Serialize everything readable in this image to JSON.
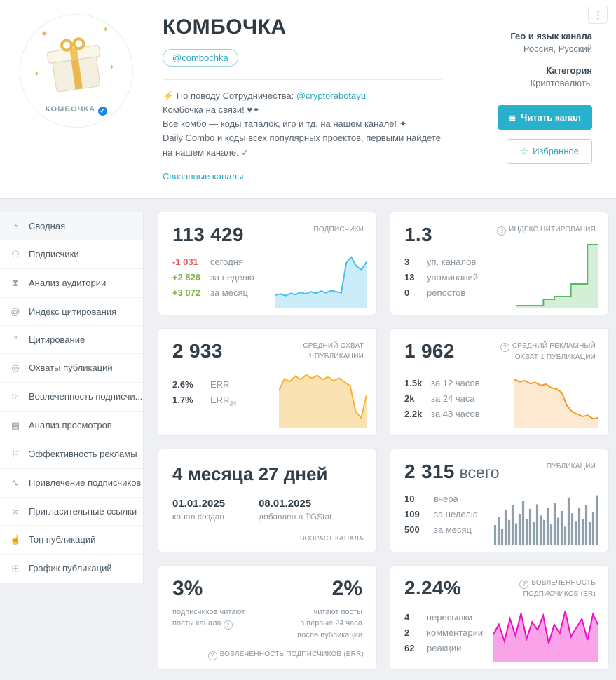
{
  "icons": {
    "dots": "⋮",
    "star": "☆",
    "read": "≣",
    "check": "✓"
  },
  "header": {
    "title": "КОМБОЧКА",
    "username": "@combochka",
    "avatar_caption": "КОМБОЧКА",
    "description": {
      "line1_prefix": "⚡ По поводу Сотрудничества: ",
      "line1_link": "@cryptorabotayu",
      "line2": "Комбочка на связи! ♥✦",
      "line3": "Все комбо — коды тапалок, игр и тд. на нашем канале! ✦",
      "line4": "Daily Combo и коды всех популярных проектов, первыми найдете",
      "line5": "на нашем канале. ✓",
      "related_link": "Связанные каналы"
    },
    "meta": {
      "geo_label": "Гео и язык канала",
      "geo_value": "Россия, Русский",
      "category_label": "Категория",
      "category_value": "Криптовалюты"
    },
    "buttons": {
      "read": "Читать канал",
      "favorite": "Избранное"
    }
  },
  "sidebar": {
    "items": [
      {
        "label": "Сводная",
        "icon": "◔"
      },
      {
        "label": "Подписчики",
        "icon": "⚇"
      },
      {
        "label": "Анализ аудитории",
        "icon": "⧗"
      },
      {
        "label": "Индекс цитирования",
        "icon": "@"
      },
      {
        "label": "Цитирование",
        "icon": "”"
      },
      {
        "label": "Охваты публикаций",
        "icon": "◎"
      },
      {
        "label": "Вовлеченность подписчи...",
        "icon": "☞"
      },
      {
        "label": "Анализ просмотров",
        "icon": "▦"
      },
      {
        "label": "Эффективность рекламы",
        "icon": "⚐"
      },
      {
        "label": "Привлечение подписчиков",
        "icon": "∿"
      },
      {
        "label": "Пригласительные ссылки",
        "icon": "∞"
      },
      {
        "label": "Топ публикаций",
        "icon": "☝"
      },
      {
        "label": "График публикаций",
        "icon": "⊞"
      }
    ]
  },
  "cards": {
    "subscribers": {
      "value": "113 429",
      "label": "ПОДПИСЧИКИ",
      "stats": [
        {
          "value": "-1 031",
          "label": "сегодня"
        },
        {
          "value": "+2 826",
          "label": "за неделю"
        },
        {
          "value": "+3 072",
          "label": "за месяц"
        }
      ],
      "chart": {
        "type": "area",
        "points": [
          22,
          24,
          21,
          25,
          23,
          27,
          24,
          28,
          25,
          29,
          26,
          30,
          28,
          26,
          78,
          88,
          72,
          66,
          80
        ],
        "color": "#45c0e8",
        "fill": "rgba(69,192,232,0.28)"
      }
    },
    "citation": {
      "value": "1.3",
      "label": "ИНДЕКС ЦИТИРОВАНИЯ",
      "stats": [
        {
          "value": "3",
          "label": "уп. каналов"
        },
        {
          "value": "13",
          "label": "упоминаний"
        },
        {
          "value": "0",
          "label": "репостов"
        }
      ],
      "chart": {
        "type": "step",
        "points": [
          3,
          3,
          3,
          3,
          3,
          12,
          12,
          16,
          16,
          16,
          34,
          34,
          34,
          90,
          90,
          97
        ],
        "color": "#57bb63",
        "fill": "rgba(87,187,99,0.25)"
      }
    },
    "avg_reach": {
      "value": "2 933",
      "label_line1": "СРЕДНИЙ ОХВАТ",
      "label_line2": "1 ПУБЛИКАЦИИ",
      "stats": [
        {
          "value": "2.6%",
          "label": "ERR",
          "sub": ""
        },
        {
          "value": "1.7%",
          "label": "ERR",
          "sub": "24"
        }
      ],
      "chart": {
        "type": "area",
        "points": [
          55,
          72,
          68,
          76,
          71,
          78,
          73,
          77,
          71,
          75,
          69,
          73,
          67,
          62,
          25,
          15,
          48
        ],
        "color": "#f5b335",
        "fill": "rgba(245,179,53,0.38)"
      }
    },
    "ad_reach": {
      "value": "1 962",
      "label_line1": "СРЕДНИЙ РЕКЛАМНЫЙ",
      "label_line2": "ОХВАТ 1 ПУБЛИКАЦИИ",
      "stats": [
        {
          "value": "1.5k",
          "label": "за 12 часов"
        },
        {
          "value": "2k",
          "label": "за 24 часа"
        },
        {
          "value": "2.2k",
          "label": "за 48 часов"
        }
      ],
      "chart": {
        "type": "area",
        "points": [
          82,
          78,
          80,
          75,
          77,
          72,
          74,
          68,
          66,
          60,
          38,
          28,
          24,
          20,
          22,
          16,
          18
        ],
        "color": "#f59a23",
        "fill": "rgba(245,154,35,0.22)"
      }
    },
    "age": {
      "value": "4 месяца 27 дней",
      "created_date": "01.01.2025",
      "created_label": "канал создан",
      "added_date": "08.01.2025",
      "added_label": "добавлен в TGStat",
      "label": "ВОЗРАСТ КАНАЛА"
    },
    "posts": {
      "value": "2 315",
      "value_suffix": "всего",
      "label": "ПУБЛИКАЦИИ",
      "stats": [
        {
          "value": "10",
          "label": "вчера"
        },
        {
          "value": "109",
          "label": "за неделю"
        },
        {
          "value": "500",
          "label": "за месяц"
        }
      ],
      "chart": {
        "type": "bars",
        "points": [
          35,
          50,
          28,
          62,
          44,
          70,
          38,
          55,
          78,
          46,
          64,
          40,
          72,
          52,
          44,
          66,
          36,
          74,
          48,
          60,
          32,
          84,
          56,
          42,
          66,
          46,
          70,
          40,
          58,
          88
        ],
        "color": "#90a0aa"
      }
    },
    "err": {
      "left_value": "3%",
      "left_caption_1": "подписчиков читают",
      "left_caption_2": "посты канала",
      "right_value": "2%",
      "right_caption_1": "читают посты",
      "right_caption_2": "в первые 24 часа",
      "right_caption_3": "после публикации",
      "label": "ВОВЛЕЧЕННОСТЬ ПОДПИСЧИКОВ (ERR)"
    },
    "er": {
      "value": "2.24%",
      "label_line1": "ВОВЛЕЧЕННОСТЬ",
      "label_line2": "ПОДПИСЧИКОВ (ER)",
      "stats": [
        {
          "value": "4",
          "label": "пересылки"
        },
        {
          "value": "2",
          "label": "комментарии"
        },
        {
          "value": "62",
          "label": "реакции"
        }
      ],
      "chart": {
        "type": "area",
        "points": [
          50,
          68,
          38,
          78,
          48,
          88,
          42,
          72,
          58,
          84,
          34,
          68,
          52,
          92,
          46,
          62,
          78,
          40,
          86,
          66
        ],
        "color": "#ef0fc4",
        "fill": "rgba(239,15,196,0.38)"
      }
    }
  }
}
